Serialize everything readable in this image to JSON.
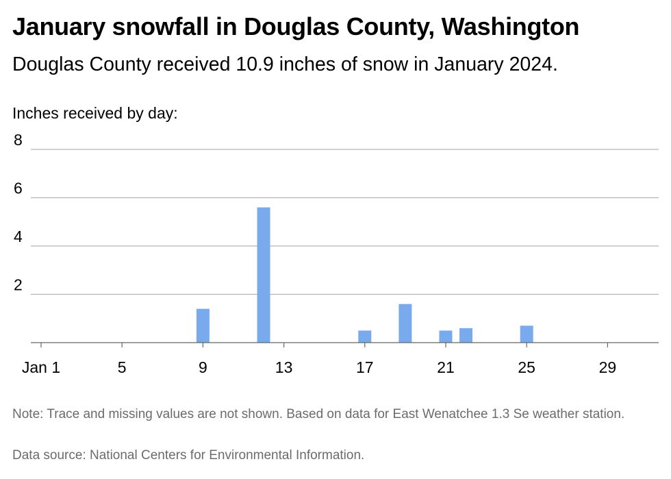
{
  "header": {
    "title": "January snowfall in Douglas County, Washington",
    "subtitle": "Douglas County received 10.9 inches of snow in January 2024.",
    "axis_caption": "Inches received by day:"
  },
  "footer": {
    "note": "Note: Trace and missing values are not shown. Based on data for East Wenatchee 1.3 Se weather station.",
    "source": "Data source: National Centers for Environmental Information."
  },
  "colors": {
    "bar": "#7aaaee",
    "grid": "#b3b3b3",
    "axis": "#666666"
  },
  "chart_data": {
    "type": "bar",
    "title": "January snowfall in Douglas County, Washington",
    "ylabel": "Inches received by day:",
    "xlabel": "",
    "x_tick_labels": [
      {
        "day": 1,
        "label": "Jan 1"
      },
      {
        "day": 5,
        "label": "5"
      },
      {
        "day": 9,
        "label": "9"
      },
      {
        "day": 13,
        "label": "13"
      },
      {
        "day": 17,
        "label": "17"
      },
      {
        "day": 21,
        "label": "21"
      },
      {
        "day": 25,
        "label": "25"
      },
      {
        "day": 29,
        "label": "29"
      }
    ],
    "y_ticks": [
      2,
      4,
      6,
      8
    ],
    "xlim": [
      1,
      31
    ],
    "ylim": [
      0,
      8
    ],
    "grid": true,
    "bars": [
      {
        "day": 9,
        "value": 1.4
      },
      {
        "day": 12,
        "value": 5.6
      },
      {
        "day": 17,
        "value": 0.5
      },
      {
        "day": 19,
        "value": 1.6
      },
      {
        "day": 21,
        "value": 0.5
      },
      {
        "day": 22,
        "value": 0.6
      },
      {
        "day": 25,
        "value": 0.7
      }
    ]
  }
}
